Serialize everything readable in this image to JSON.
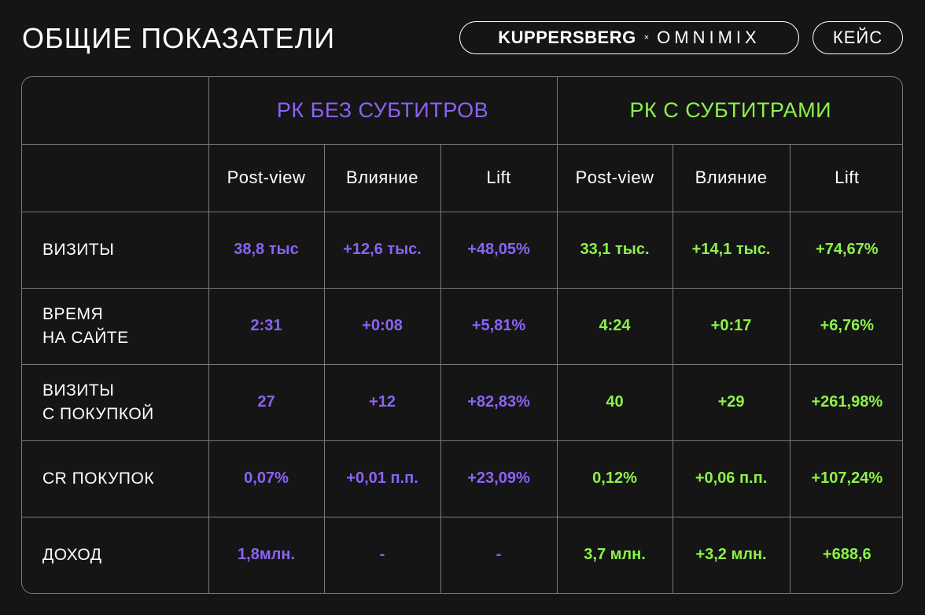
{
  "header": {
    "title": "ОБЩИЕ ПОКАЗАТЕЛИ",
    "brand_left": "KUPPERSBERG",
    "brand_sep": "×",
    "brand_right": "OMNIMIX",
    "case_label": "КЕЙС"
  },
  "colors": {
    "background": "#151515",
    "purple": "#8a63f5",
    "green": "#8cf24a",
    "border": "#7a7a7a"
  },
  "table": {
    "groups": [
      "РК БЕЗ СУБТИТРОВ",
      "РК С СУБТИТРАМИ"
    ],
    "subheaders": [
      "Post-view",
      "Влияние",
      "Lift",
      "Post-view",
      "Влияние",
      "Lift"
    ],
    "rows": [
      {
        "label": "ВИЗИТЫ",
        "values": [
          "38,8 тыс",
          "+12,6 тыс.",
          "+48,05%",
          "33,1 тыс.",
          "+14,1 тыс.",
          "+74,67%"
        ]
      },
      {
        "label": "ВРЕМЯ\nНА САЙТЕ",
        "values": [
          "2:31",
          "+0:08",
          "+5,81%",
          "4:24",
          "+0:17",
          "+6,76%"
        ]
      },
      {
        "label": "ВИЗИТЫ\nС ПОКУПКОЙ",
        "values": [
          "27",
          "+12",
          "+82,83%",
          "40",
          "+29",
          "+261,98%"
        ]
      },
      {
        "label": "CR ПОКУПОК",
        "values": [
          "0,07%",
          "+0,01 п.п.",
          "+23,09%",
          "0,12%",
          "+0,06 п.п.",
          "+107,24%"
        ]
      },
      {
        "label": "ДОХОД",
        "values": [
          "1,8млн.",
          "-",
          "-",
          "3,7 млн.",
          "+3,2 млн.",
          "+688,6"
        ]
      }
    ]
  }
}
